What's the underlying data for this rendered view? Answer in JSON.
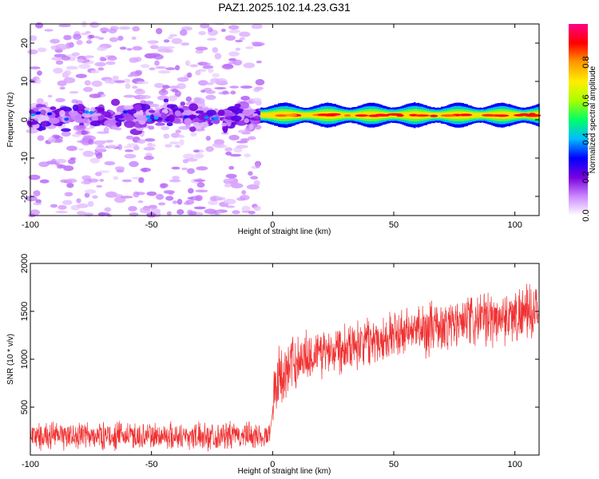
{
  "title": "PAZ1.2025.102.14.23.G31",
  "colors": {
    "snr_line": "#f03030",
    "spectral_colormap": [
      "#ffffff",
      "#cc88ff",
      "#7700dd",
      "#0000ff",
      "#00bbff",
      "#00ff66",
      "#aaff00",
      "#ffee00",
      "#ff9900",
      "#ff0000",
      "#ff0088"
    ]
  },
  "chart_data": [
    {
      "type": "heatmap",
      "xlabel": "Height of straight line (km)",
      "ylabel": "Frequency (Hz)",
      "xlim": [
        -100,
        110
      ],
      "ylim": [
        -25,
        25
      ],
      "xticks": [
        -100,
        -50,
        0,
        50,
        100
      ],
      "yticks": [
        -20,
        -10,
        0,
        10,
        20
      ],
      "colorbar": {
        "label": "Normalized spectral amplitude",
        "range": [
          0,
          1
        ],
        "ticks": [
          "0.0",
          "0.2",
          "0.4",
          "0.6",
          "0.8"
        ]
      },
      "regions": [
        {
          "x_range": [
            -100,
            -5
          ],
          "center_freq_hz": 1,
          "core_halfwidth_hz": 6,
          "scatter_extent_hz": [
            -25,
            25
          ],
          "amplitude_range": [
            0.05,
            0.25
          ]
        },
        {
          "x_range": [
            -5,
            110
          ],
          "center_freq_hz": 1.2,
          "core_halfwidth_hz": 2.5,
          "amplitude_range": [
            0.3,
            0.95
          ]
        }
      ]
    },
    {
      "type": "line",
      "xlabel": "Height of straight line (km)",
      "ylabel": "SNR (10 * v/v)",
      "xlim": [
        -100,
        110
      ],
      "ylim": [
        0,
        2000
      ],
      "xticks": [
        -100,
        -50,
        0,
        50,
        100
      ],
      "yticks": [
        500,
        1000,
        1500,
        2000
      ],
      "segments": [
        {
          "x": [
            -100,
            -1
          ],
          "mean": [
            200,
            200
          ],
          "noise": 170
        },
        {
          "x": [
            0,
            10
          ],
          "mean": [
            700,
            1000
          ],
          "noise": 380
        },
        {
          "x": [
            10,
            30
          ],
          "mean": [
            1000,
            1150
          ],
          "noise": 320
        },
        {
          "x": [
            30,
            60
          ],
          "mean": [
            1150,
            1300
          ],
          "noise": 300
        },
        {
          "x": [
            60,
            110
          ],
          "mean": [
            1300,
            1500
          ],
          "noise": 330
        }
      ]
    }
  ]
}
